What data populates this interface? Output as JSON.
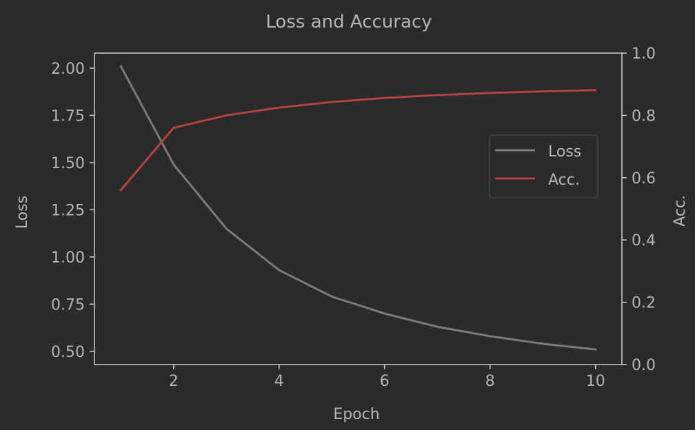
{
  "colors": {
    "background": "#2b2b2b",
    "frame": "#cfcfcf",
    "text": "#b4b4b4",
    "loss": "#7a7a7a",
    "acc": "#b5433f"
  },
  "chart_data": {
    "type": "line",
    "title": "Loss and Accuracy",
    "xlabel": "Epoch",
    "ylabel": "Loss",
    "ylabel_right": "Acc.",
    "x": [
      1,
      2,
      3,
      4,
      5,
      6,
      7,
      8,
      9,
      10
    ],
    "xlim": [
      0.5,
      10.5
    ],
    "ylim": [
      0.43,
      2.08
    ],
    "ylim_right": [
      0.0,
      1.0
    ],
    "xticks": [
      "2",
      "4",
      "6",
      "8",
      "10"
    ],
    "yticks": [
      "0.50",
      "0.75",
      "1.00",
      "1.25",
      "1.50",
      "1.75",
      "2.00"
    ],
    "yticks_right": [
      "0.0",
      "0.2",
      "0.4",
      "0.6",
      "0.8",
      "1.0"
    ],
    "legend_position": "center-right",
    "grid": false,
    "series": [
      {
        "name": "Loss",
        "axis": "left",
        "values": [
          2.01,
          1.49,
          1.15,
          0.93,
          0.79,
          0.7,
          0.63,
          0.58,
          0.54,
          0.51
        ]
      },
      {
        "name": "Acc.",
        "axis": "right",
        "values": [
          0.56,
          0.76,
          0.8,
          0.825,
          0.843,
          0.856,
          0.865,
          0.872,
          0.877,
          0.881
        ]
      }
    ]
  }
}
